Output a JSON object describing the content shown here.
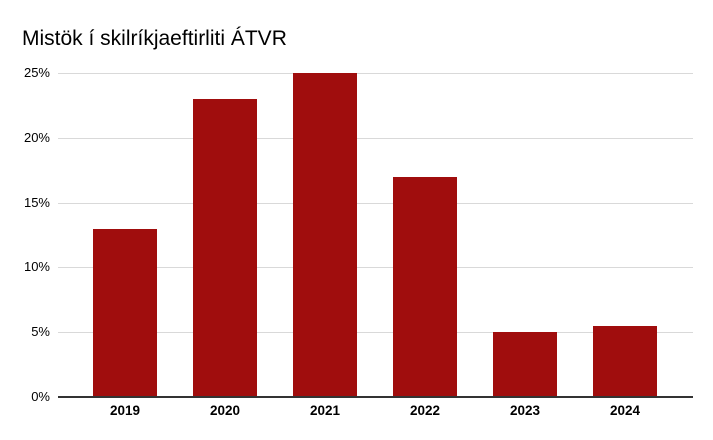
{
  "chart_data": {
    "type": "bar",
    "title": "Mistök í skilríkjaeftirliti ÁTVR",
    "categories": [
      "2019",
      "2020",
      "2021",
      "2022",
      "2023",
      "2024"
    ],
    "values": [
      13,
      23,
      25,
      17,
      5,
      5.5
    ],
    "unit": "%",
    "xlabel": "",
    "ylabel": "",
    "ylim": [
      0,
      25
    ],
    "yticks": [
      0,
      5,
      10,
      15,
      20,
      25
    ],
    "ytick_labels": [
      "0%",
      "5%",
      "10%",
      "15%",
      "20%",
      "25%"
    ],
    "grid": "horizontal",
    "legend": "none",
    "colors": {
      "bar": "#A00D0D",
      "gridline": "#D9D9D9",
      "axis": "#333333",
      "text": "#000000",
      "background": "#FFFFFF"
    }
  }
}
